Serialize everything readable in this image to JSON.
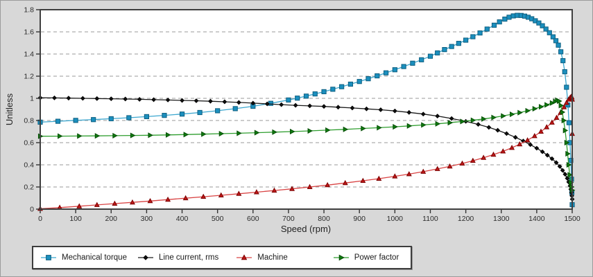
{
  "figure": {
    "background_color": "#d8d8d8",
    "plot_background_color": "#ffffff",
    "border_color": "#3f3f3f",
    "gridline_color": "#999999"
  },
  "chart_data": {
    "type": "line",
    "title": "",
    "xlabel": "Speed (rpm)",
    "ylabel": "Unitless",
    "xlim": [
      0,
      1500
    ],
    "ylim": [
      0,
      1.8
    ],
    "x_ticks": [
      0,
      100,
      200,
      300,
      400,
      500,
      600,
      700,
      800,
      900,
      1000,
      1100,
      1200,
      1300,
      1400,
      1500
    ],
    "y_ticks": [
      0,
      0.2,
      0.4,
      0.6,
      0.8,
      1,
      1.2,
      1.4,
      1.6,
      1.8
    ],
    "y_tick_labels": [
      "0",
      "0.2",
      "0.4",
      "0.6",
      "0.8",
      "1",
      "1.2",
      "1.4",
      "1.6",
      "1.8"
    ],
    "grid": "horizontal-dashed",
    "legend_position": "bottom-left",
    "series": [
      {
        "name": "Mechanical torque",
        "marker": "square",
        "line_color": "#3aa6cf",
        "marker_fill": "#1b8fbe",
        "marker_stroke": "#0f5f80",
        "points": [
          [
            0,
            0.785
          ],
          [
            50,
            0.793
          ],
          [
            100,
            0.801
          ],
          [
            150,
            0.808
          ],
          [
            200,
            0.816
          ],
          [
            250,
            0.825
          ],
          [
            300,
            0.835
          ],
          [
            350,
            0.846
          ],
          [
            400,
            0.858
          ],
          [
            450,
            0.872
          ],
          [
            500,
            0.888
          ],
          [
            550,
            0.907
          ],
          [
            600,
            0.928
          ],
          [
            650,
            0.955
          ],
          [
            700,
            0.985
          ],
          [
            725,
            1.002
          ],
          [
            750,
            1.02
          ],
          [
            775,
            1.04
          ],
          [
            800,
            1.06
          ],
          [
            825,
            1.082
          ],
          [
            850,
            1.105
          ],
          [
            875,
            1.128
          ],
          [
            900,
            1.152
          ],
          [
            925,
            1.177
          ],
          [
            950,
            1.203
          ],
          [
            975,
            1.23
          ],
          [
            1000,
            1.258
          ],
          [
            1025,
            1.287
          ],
          [
            1050,
            1.317
          ],
          [
            1075,
            1.348
          ],
          [
            1100,
            1.38
          ],
          [
            1120,
            1.41
          ],
          [
            1140,
            1.44
          ],
          [
            1160,
            1.468
          ],
          [
            1180,
            1.496
          ],
          [
            1200,
            1.525
          ],
          [
            1220,
            1.556
          ],
          [
            1240,
            1.59
          ],
          [
            1260,
            1.625
          ],
          [
            1280,
            1.66
          ],
          [
            1295,
            1.69
          ],
          [
            1310,
            1.715
          ],
          [
            1322,
            1.732
          ],
          [
            1334,
            1.744
          ],
          [
            1345,
            1.749
          ],
          [
            1356,
            1.748
          ],
          [
            1366,
            1.742
          ],
          [
            1376,
            1.732
          ],
          [
            1386,
            1.718
          ],
          [
            1396,
            1.7
          ],
          [
            1406,
            1.68
          ],
          [
            1416,
            1.655
          ],
          [
            1426,
            1.625
          ],
          [
            1436,
            1.592
          ],
          [
            1446,
            1.555
          ],
          [
            1454,
            1.52
          ],
          [
            1461,
            1.48
          ],
          [
            1468,
            1.42
          ],
          [
            1474,
            1.34
          ],
          [
            1479,
            1.24
          ],
          [
            1484,
            1.1
          ],
          [
            1488,
            0.94
          ],
          [
            1491,
            0.78
          ],
          [
            1494,
            0.6
          ],
          [
            1496,
            0.44
          ],
          [
            1498,
            0.27
          ],
          [
            1499,
            0.15
          ],
          [
            1500,
            0.04
          ]
        ]
      },
      {
        "name": "Line current, rms",
        "marker": "diamond",
        "line_color": "#1a1a1a",
        "marker_fill": "#111111",
        "marker_stroke": "#000000",
        "points": [
          [
            0,
            1.005
          ],
          [
            40,
            1.004
          ],
          [
            80,
            1.002
          ],
          [
            120,
            1.0
          ],
          [
            160,
            0.998
          ],
          [
            200,
            0.996
          ],
          [
            240,
            0.994
          ],
          [
            280,
            0.991
          ],
          [
            320,
            0.988
          ],
          [
            360,
            0.985
          ],
          [
            400,
            0.981
          ],
          [
            440,
            0.978
          ],
          [
            480,
            0.974
          ],
          [
            520,
            0.969
          ],
          [
            560,
            0.963
          ],
          [
            600,
            0.957
          ],
          [
            640,
            0.95
          ],
          [
            680,
            0.943
          ],
          [
            720,
            0.937
          ],
          [
            760,
            0.932
          ],
          [
            800,
            0.927
          ],
          [
            840,
            0.92
          ],
          [
            880,
            0.913
          ],
          [
            920,
            0.905
          ],
          [
            960,
            0.897
          ],
          [
            1000,
            0.886
          ],
          [
            1040,
            0.873
          ],
          [
            1080,
            0.858
          ],
          [
            1120,
            0.84
          ],
          [
            1160,
            0.818
          ],
          [
            1200,
            0.792
          ],
          [
            1235,
            0.765
          ],
          [
            1265,
            0.738
          ],
          [
            1290,
            0.712
          ],
          [
            1315,
            0.682
          ],
          [
            1340,
            0.648
          ],
          [
            1362,
            0.615
          ],
          [
            1382,
            0.582
          ],
          [
            1400,
            0.55
          ],
          [
            1416,
            0.518
          ],
          [
            1430,
            0.487
          ],
          [
            1443,
            0.455
          ],
          [
            1455,
            0.42
          ],
          [
            1465,
            0.385
          ],
          [
            1473,
            0.35
          ],
          [
            1480,
            0.315
          ],
          [
            1486,
            0.278
          ],
          [
            1490,
            0.245
          ],
          [
            1494,
            0.21
          ],
          [
            1496,
            0.18
          ],
          [
            1498,
            0.15
          ],
          [
            1499,
            0.12
          ],
          [
            1500,
            0.09
          ]
        ]
      },
      {
        "name": "Machine",
        "marker": "triangle-up",
        "line_color": "#d94343",
        "marker_fill": "#c01818",
        "marker_stroke": "#7a0000",
        "points": [
          [
            0,
            0.004
          ],
          [
            55,
            0.014
          ],
          [
            110,
            0.026
          ],
          [
            160,
            0.038
          ],
          [
            210,
            0.05
          ],
          [
            260,
            0.061
          ],
          [
            310,
            0.073
          ],
          [
            360,
            0.086
          ],
          [
            410,
            0.099
          ],
          [
            460,
            0.112
          ],
          [
            510,
            0.125
          ],
          [
            560,
            0.139
          ],
          [
            610,
            0.153
          ],
          [
            660,
            0.168
          ],
          [
            710,
            0.183
          ],
          [
            760,
            0.2
          ],
          [
            810,
            0.217
          ],
          [
            860,
            0.236
          ],
          [
            910,
            0.256
          ],
          [
            955,
            0.275
          ],
          [
            1000,
            0.296
          ],
          [
            1040,
            0.316
          ],
          [
            1080,
            0.338
          ],
          [
            1120,
            0.363
          ],
          [
            1155,
            0.386
          ],
          [
            1190,
            0.412
          ],
          [
            1220,
            0.437
          ],
          [
            1250,
            0.464
          ],
          [
            1278,
            0.492
          ],
          [
            1305,
            0.522
          ],
          [
            1330,
            0.554
          ],
          [
            1352,
            0.586
          ],
          [
            1374,
            0.622
          ],
          [
            1394,
            0.66
          ],
          [
            1412,
            0.7
          ],
          [
            1428,
            0.74
          ],
          [
            1443,
            0.782
          ],
          [
            1456,
            0.825
          ],
          [
            1467,
            0.87
          ],
          [
            1477,
            0.92
          ],
          [
            1484,
            0.96
          ],
          [
            1490,
            0.99
          ],
          [
            1494,
            1.005
          ],
          [
            1497,
            1.015
          ],
          [
            1499,
            1.01
          ],
          [
            1500,
            0.99
          ],
          [
            1500,
            0.68
          ]
        ]
      },
      {
        "name": "Power factor",
        "marker": "triangle-right",
        "line_color": "#2f9e2f",
        "marker_fill": "#0f7c0f",
        "marker_stroke": "#064d06",
        "points": [
          [
            0,
            0.658
          ],
          [
            55,
            0.659
          ],
          [
            110,
            0.66
          ],
          [
            160,
            0.661
          ],
          [
            210,
            0.663
          ],
          [
            260,
            0.665
          ],
          [
            310,
            0.667
          ],
          [
            360,
            0.67
          ],
          [
            410,
            0.673
          ],
          [
            460,
            0.677
          ],
          [
            510,
            0.681
          ],
          [
            560,
            0.685
          ],
          [
            610,
            0.69
          ],
          [
            660,
            0.695
          ],
          [
            710,
            0.7
          ],
          [
            760,
            0.706
          ],
          [
            810,
            0.713
          ],
          [
            860,
            0.72
          ],
          [
            910,
            0.728
          ],
          [
            955,
            0.735
          ],
          [
            1000,
            0.743
          ],
          [
            1040,
            0.751
          ],
          [
            1080,
            0.76
          ],
          [
            1120,
            0.77
          ],
          [
            1155,
            0.78
          ],
          [
            1190,
            0.791
          ],
          [
            1220,
            0.802
          ],
          [
            1250,
            0.814
          ],
          [
            1278,
            0.827
          ],
          [
            1305,
            0.841
          ],
          [
            1330,
            0.856
          ],
          [
            1352,
            0.871
          ],
          [
            1374,
            0.888
          ],
          [
            1394,
            0.906
          ],
          [
            1412,
            0.924
          ],
          [
            1428,
            0.941
          ],
          [
            1443,
            0.958
          ],
          [
            1452,
            0.972
          ],
          [
            1458,
            0.983
          ],
          [
            1463,
            0.975
          ],
          [
            1468,
            0.935
          ],
          [
            1472,
            0.875
          ],
          [
            1476,
            0.8
          ],
          [
            1480,
            0.71
          ],
          [
            1484,
            0.6
          ],
          [
            1487,
            0.5
          ],
          [
            1490,
            0.4
          ],
          [
            1493,
            0.31
          ],
          [
            1496,
            0.24
          ],
          [
            1498,
            0.2
          ],
          [
            1500,
            0.17
          ]
        ]
      }
    ]
  }
}
